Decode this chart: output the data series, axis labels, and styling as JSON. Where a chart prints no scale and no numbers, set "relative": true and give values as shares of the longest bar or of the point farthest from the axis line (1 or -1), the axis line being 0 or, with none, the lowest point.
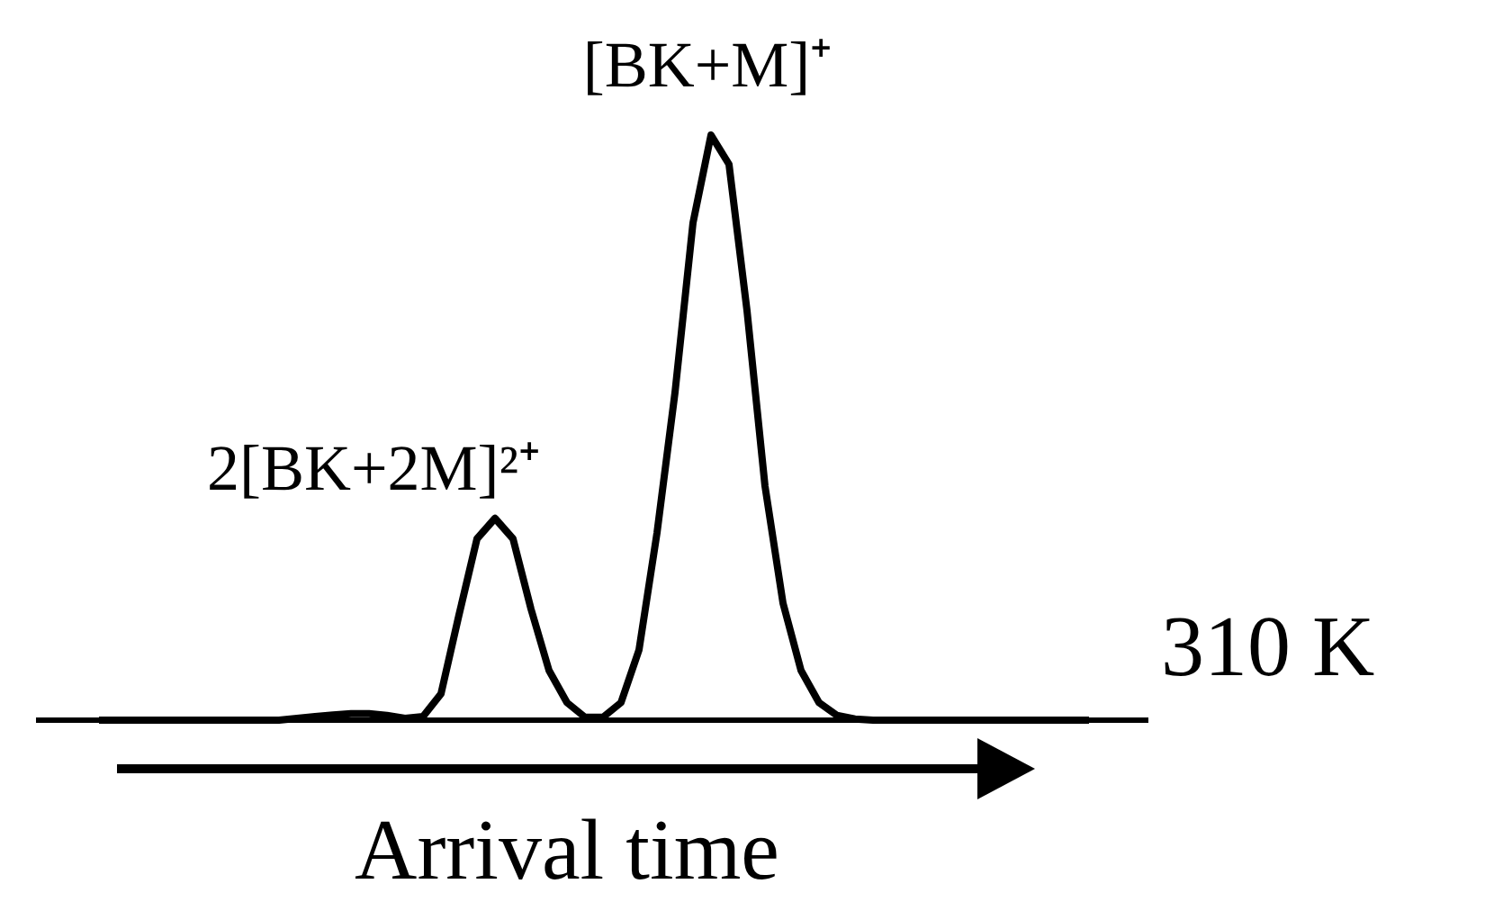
{
  "chart_data": {
    "type": "line",
    "relative": true,
    "xlabel": "Arrival time",
    "categories": [
      null,
      null,
      null,
      null,
      null,
      null,
      null,
      null,
      null,
      null,
      null,
      null,
      null,
      null,
      null,
      null,
      null,
      null,
      null,
      null,
      null,
      null,
      null,
      null,
      null,
      null,
      null,
      null,
      null,
      null,
      null,
      null,
      null,
      null,
      null,
      null,
      null,
      null,
      null,
      null,
      null,
      null,
      null,
      null,
      null,
      null,
      null,
      null,
      null,
      null,
      null,
      null,
      null,
      null,
      null,
      null
    ],
    "series": [
      {
        "color": "#000000",
        "values": [
          0,
          0,
          0,
          0,
          0,
          0,
          0,
          0,
          0,
          0,
          0,
          0.003,
          0.006,
          0.009,
          0.011,
          0.011,
          0.008,
          0.003,
          0.006,
          0.045,
          0.18,
          0.31,
          0.345,
          0.31,
          0.19,
          0.085,
          0.03,
          0.005,
          0.005,
          0.03,
          0.12,
          0.32,
          0.56,
          0.85,
          1,
          0.95,
          0.7,
          0.4,
          0.2,
          0.085,
          0.03,
          0.008,
          0.002,
          0,
          0,
          0,
          0,
          0,
          0,
          0,
          0,
          0,
          0,
          0,
          0,
          0
        ]
      }
    ],
    "annotations": [
      "[BK+M]⁺",
      "2[BK+2M]²⁺",
      "310 K"
    ],
    "marker": "none",
    "line_style": "solid"
  }
}
